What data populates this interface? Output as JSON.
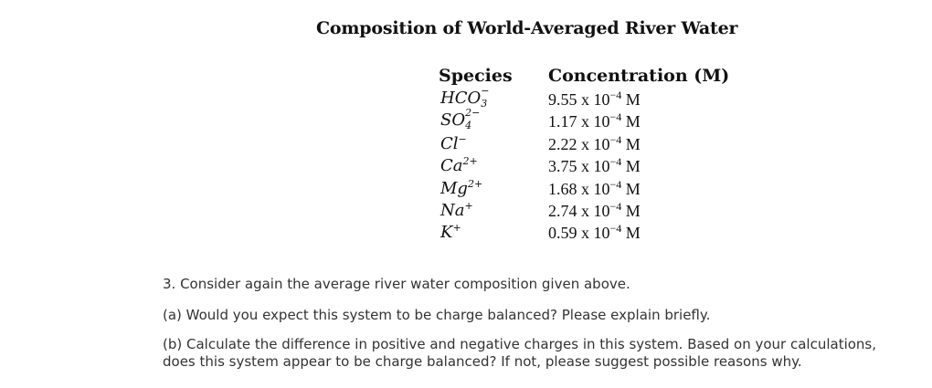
{
  "title": "Composition of World-Averaged River Water",
  "table": {
    "headers": {
      "species": "Species",
      "concentration": "Concentration (M)"
    },
    "rows": [
      {
        "species_base": "HCO",
        "species_sub": "3",
        "species_sup": "−",
        "mantissa": "9.55",
        "times": "x",
        "exp_base": "10",
        "exponent": "−4",
        "unit": "M"
      },
      {
        "species_base": "SO",
        "species_sub": "4",
        "species_sup": "2−",
        "mantissa": "1.17",
        "times": "x",
        "exp_base": "10",
        "exponent": "−4",
        "unit": "M"
      },
      {
        "species_base": "Cl",
        "species_sub": "",
        "species_sup": "−",
        "mantissa": "2.22",
        "times": "x",
        "exp_base": "10",
        "exponent": "−4",
        "unit": "M"
      },
      {
        "species_base": "Ca",
        "species_sub": "",
        "species_sup": "2+",
        "mantissa": "3.75",
        "times": "x",
        "exp_base": "10",
        "exponent": "−4",
        "unit": "M"
      },
      {
        "species_base": "Mg",
        "species_sub": "",
        "species_sup": "2+",
        "mantissa": "1.68",
        "times": "x",
        "exp_base": "10",
        "exponent": "−4",
        "unit": "M"
      },
      {
        "species_base": "Na",
        "species_sub": "",
        "species_sup": "+",
        "mantissa": "2.74",
        "times": "x",
        "exp_base": "10",
        "exponent": "−4",
        "unit": "M"
      },
      {
        "species_base": "K",
        "species_sub": "",
        "species_sup": "+",
        "mantissa": "0.59",
        "times": "x",
        "exp_base": "10",
        "exponent": "−4",
        "unit": "M"
      }
    ]
  },
  "questions": {
    "heading": "3. Consider again the average river water composition given above.",
    "part_a": "(a) Would you expect this system to be charge balanced? Please explain briefly.",
    "part_b": "(b) Calculate the difference in positive and negative charges in this system. Based on your calculations, does this system appear to be charge balanced? If not, please suggest possible reasons why."
  }
}
